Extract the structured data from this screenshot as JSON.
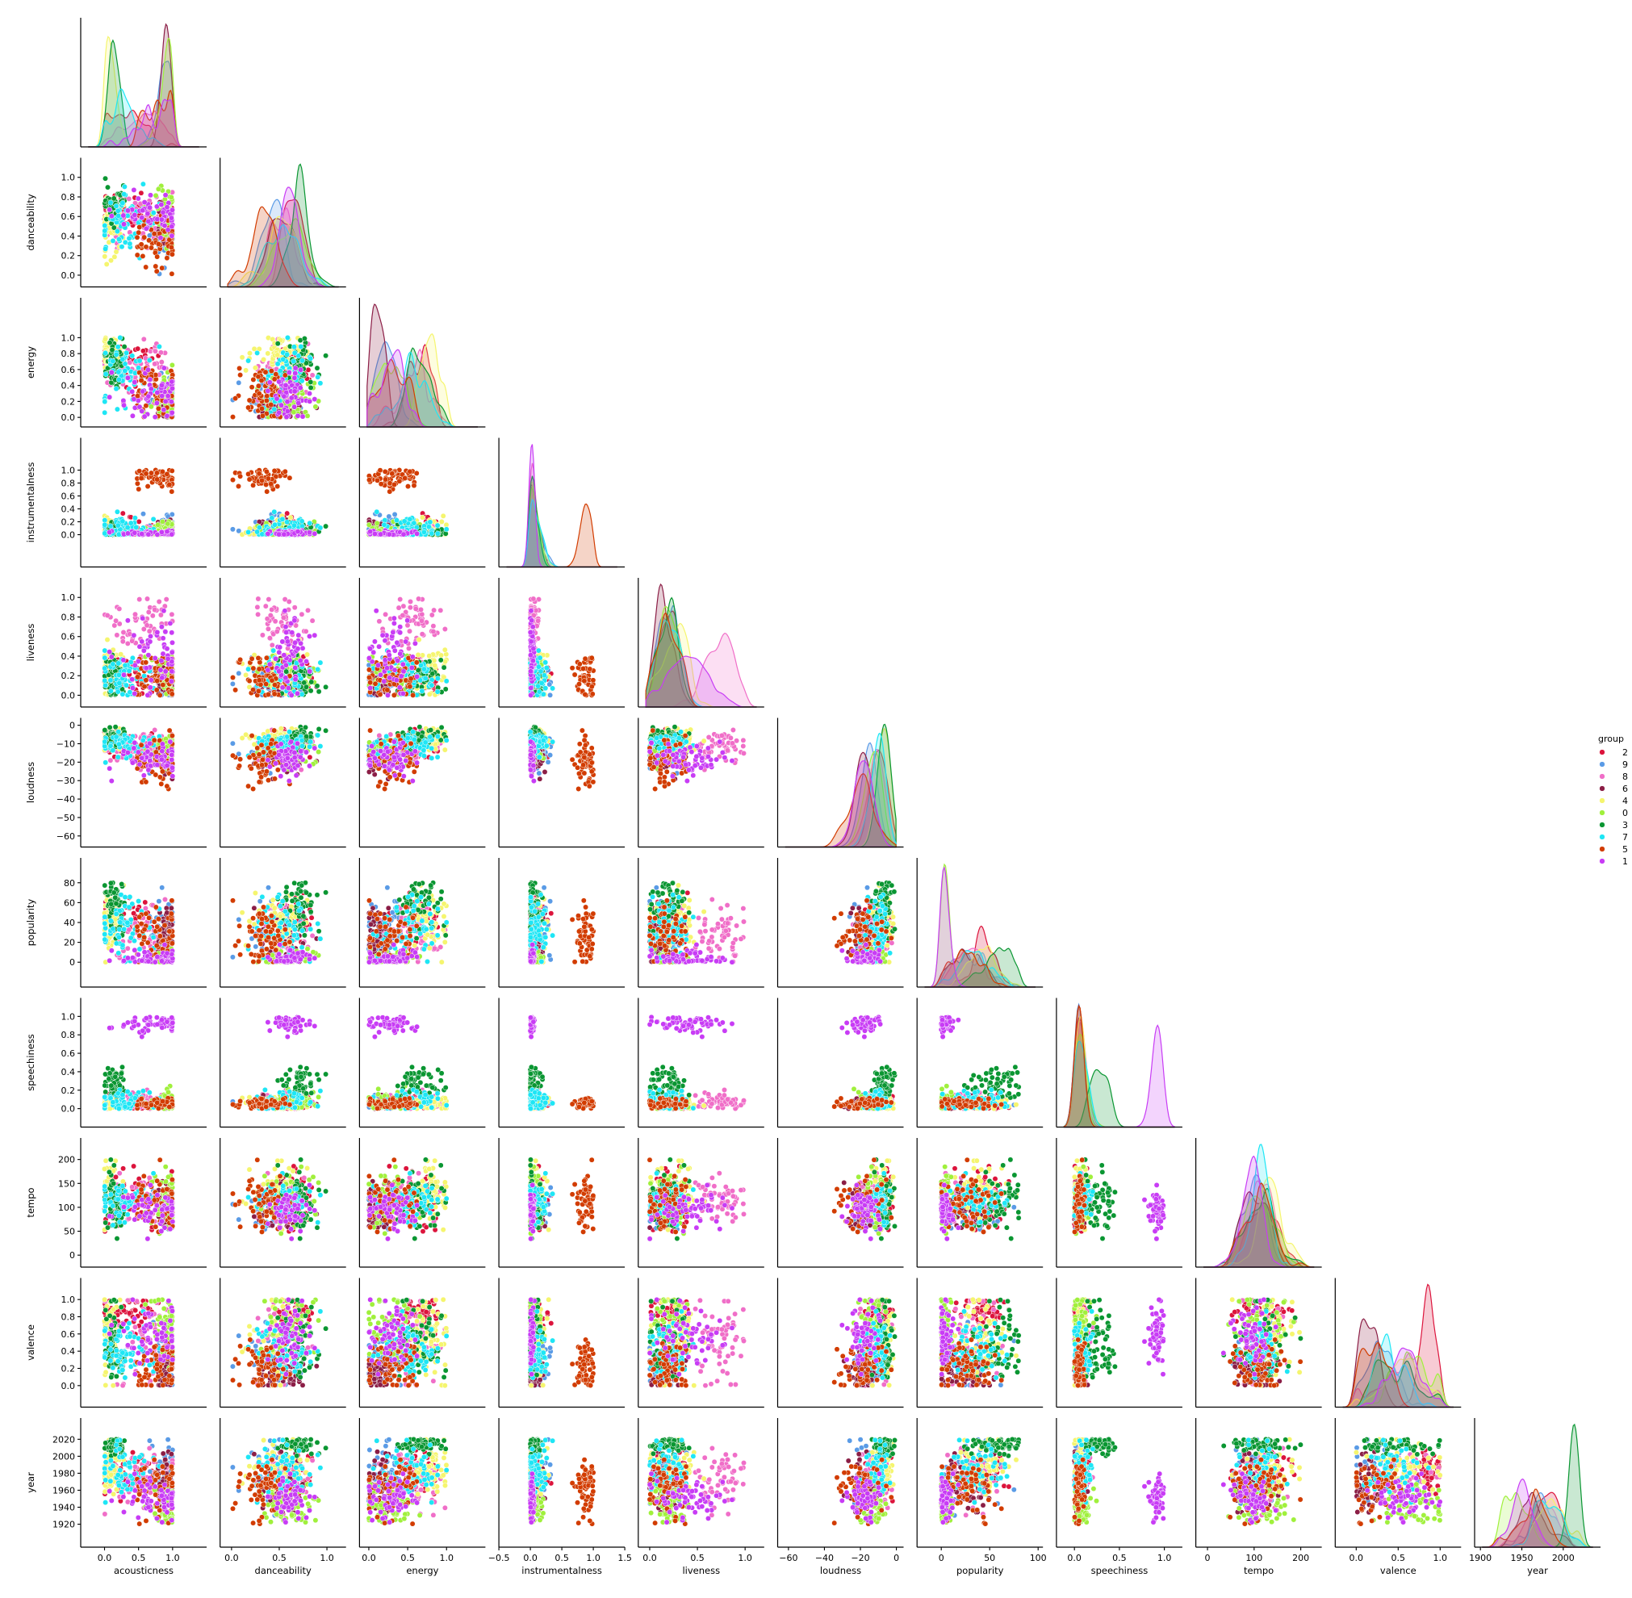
{
  "chart_data": {
    "type": "scatter",
    "kind": "pairplot-lower-triangle",
    "diag_kind": "kde",
    "variables": [
      {
        "name": "acousticness",
        "range": [
          -0.35,
          1.5
        ],
        "ticks": [
          0.0,
          0.5,
          1.0
        ],
        "tick_labels": [
          "0.0",
          "0.5",
          "1.0"
        ]
      },
      {
        "name": "danceability",
        "range": [
          -0.12,
          1.2
        ],
        "ticks": [
          0.0,
          0.2,
          0.4,
          0.6,
          0.8,
          1.0
        ],
        "tick_labels": [
          "0.0",
          "0.2",
          "0.4",
          "0.6",
          "0.8",
          "1.0"
        ],
        "x_ticks": [
          0.0,
          0.5,
          1.0
        ],
        "x_tick_labels": [
          "0.0",
          "0.5",
          "1.0"
        ]
      },
      {
        "name": "energy",
        "range": [
          -0.12,
          1.5
        ],
        "ticks": [
          0.0,
          0.2,
          0.4,
          0.6,
          0.8,
          1.0
        ],
        "tick_labels": [
          "0.0",
          "0.2",
          "0.4",
          "0.6",
          "0.8",
          "1.0"
        ],
        "x_ticks": [
          0.0,
          0.5,
          1.0
        ],
        "x_tick_labels": [
          "0.0",
          "0.5",
          "1.0"
        ]
      },
      {
        "name": "instrumentalness",
        "range": [
          -0.5,
          1.5
        ],
        "ticks": [
          0.0,
          0.2,
          0.4,
          0.6,
          0.8,
          1.0
        ],
        "tick_labels": [
          "0.0",
          "0.2",
          "0.4",
          "0.6",
          "0.8",
          "1.0"
        ],
        "x_ticks": [
          -0.5,
          0.0,
          0.5,
          1.0,
          1.5
        ],
        "x_tick_labels": [
          "−0.5",
          "0.0",
          "0.5",
          "1.0",
          "1.5"
        ]
      },
      {
        "name": "liveness",
        "range": [
          -0.12,
          1.2
        ],
        "ticks": [
          0.0,
          0.2,
          0.4,
          0.6,
          0.8,
          1.0
        ],
        "tick_labels": [
          "0.0",
          "0.2",
          "0.4",
          "0.6",
          "0.8",
          "1.0"
        ],
        "x_ticks": [
          0.0,
          0.5,
          1.0
        ],
        "x_tick_labels": [
          "0.0",
          "0.5",
          "1.0"
        ]
      },
      {
        "name": "loudness",
        "range": [
          -66,
          4
        ],
        "ticks": [
          -60,
          -50,
          -40,
          -30,
          -20,
          -10,
          0
        ],
        "tick_labels": [
          "−60",
          "−50",
          "−40",
          "−30",
          "−20",
          "−10",
          "0"
        ],
        "x_ticks": [
          -60,
          -40,
          -20,
          0
        ],
        "x_tick_labels": [
          "−60",
          "−40",
          "−20",
          "0"
        ]
      },
      {
        "name": "popularity",
        "range": [
          -25,
          105
        ],
        "ticks": [
          0,
          20,
          40,
          60,
          80
        ],
        "tick_labels": [
          "0",
          "20",
          "40",
          "60",
          "80"
        ],
        "x_ticks": [
          0,
          50,
          100
        ],
        "x_tick_labels": [
          "0",
          "50",
          "100"
        ]
      },
      {
        "name": "speechiness",
        "range": [
          -0.2,
          1.2
        ],
        "ticks": [
          0.0,
          0.2,
          0.4,
          0.6,
          0.8,
          1.0
        ],
        "tick_labels": [
          "0.0",
          "0.2",
          "0.4",
          "0.6",
          "0.8",
          "1.0"
        ],
        "x_ticks": [
          0.0,
          0.5,
          1.0
        ],
        "x_tick_labels": [
          "0.0",
          "0.5",
          "1.0"
        ]
      },
      {
        "name": "tempo",
        "range": [
          -25,
          245
        ],
        "ticks": [
          0,
          50,
          100,
          150,
          200
        ],
        "tick_labels": [
          "0",
          "50",
          "100",
          "150",
          "200"
        ],
        "x_ticks": [
          0,
          100,
          200
        ],
        "x_tick_labels": [
          "0",
          "100",
          "200"
        ]
      },
      {
        "name": "valence",
        "range": [
          -0.25,
          1.25
        ],
        "ticks": [
          0.0,
          0.2,
          0.4,
          0.6,
          0.8,
          1.0
        ],
        "tick_labels": [
          "0.0",
          "0.2",
          "0.4",
          "0.6",
          "0.8",
          "1.0"
        ],
        "x_ticks": [
          0.0,
          0.5,
          1.0
        ],
        "x_tick_labels": [
          "0.0",
          "0.5",
          "1.0"
        ]
      },
      {
        "name": "year",
        "range": [
          1893,
          2045
        ],
        "ticks": [
          1920,
          1940,
          1960,
          1980,
          2000,
          2020
        ],
        "tick_labels": [
          "1920",
          "1940",
          "1960",
          "1980",
          "2000",
          "2020"
        ],
        "x_ticks": [
          1900,
          1950,
          2000
        ],
        "x_tick_labels": [
          "1900",
          "1950",
          "2000"
        ]
      }
    ],
    "legend": {
      "title": "group",
      "placement": "right",
      "entries": [
        {
          "label": "2",
          "color": "#dc143c"
        },
        {
          "label": "9",
          "color": "#5a9be6"
        },
        {
          "label": "8",
          "color": "#f06ec8"
        },
        {
          "label": "6",
          "color": "#8b1e46"
        },
        {
          "label": "4",
          "color": "#f5f56e"
        },
        {
          "label": "0",
          "color": "#a0f03c"
        },
        {
          "label": "3",
          "color": "#0a9632"
        },
        {
          "label": "7",
          "color": "#1ee6f5"
        },
        {
          "label": "5",
          "color": "#d23c00"
        },
        {
          "label": "1",
          "color": "#c83cf5"
        }
      ]
    },
    "group_profiles": {
      "2": {
        "acousticness": [
          0.3,
          0.3
        ],
        "danceability": [
          0.67,
          0.1
        ],
        "energy": [
          0.65,
          0.15
        ],
        "instrumentalness": [
          0.04,
          0.1
        ],
        "liveness": [
          0.22,
          0.12
        ],
        "loudness": [
          -9,
          4
        ],
        "popularity": [
          45,
          12
        ],
        "speechiness": [
          0.06,
          0.04
        ],
        "tempo": [
          120,
          25
        ],
        "valence": [
          0.85,
          0.1
        ],
        "year": [
          1982,
          12
        ]
      },
      "9": {
        "acousticness": [
          0.88,
          0.1
        ],
        "danceability": [
          0.42,
          0.12
        ],
        "energy": [
          0.22,
          0.12
        ],
        "instrumentalness": [
          0.06,
          0.12
        ],
        "liveness": [
          0.17,
          0.1
        ],
        "loudness": [
          -15,
          4
        ],
        "popularity": [
          30,
          15
        ],
        "speechiness": [
          0.05,
          0.03
        ],
        "tempo": [
          100,
          25
        ],
        "valence": [
          0.3,
          0.15
        ],
        "year": [
          1975,
          15
        ]
      },
      "8": {
        "acousticness": [
          0.5,
          0.3
        ],
        "danceability": [
          0.52,
          0.15
        ],
        "energy": [
          0.6,
          0.2
        ],
        "instrumentalness": [
          0.02,
          0.05
        ],
        "liveness": [
          0.72,
          0.15
        ],
        "loudness": [
          -11,
          5
        ],
        "popularity": [
          30,
          15
        ],
        "speechiness": [
          0.08,
          0.05
        ],
        "tempo": [
          120,
          25
        ],
        "valence": [
          0.5,
          0.25
        ],
        "year": [
          1975,
          20
        ]
      },
      "6": {
        "acousticness": [
          0.9,
          0.08
        ],
        "danceability": [
          0.52,
          0.12
        ],
        "energy": [
          0.12,
          0.08
        ],
        "instrumentalness": [
          0.03,
          0.1
        ],
        "liveness": [
          0.15,
          0.1
        ],
        "loudness": [
          -18,
          4
        ],
        "popularity": [
          25,
          15
        ],
        "speechiness": [
          0.05,
          0.03
        ],
        "tempo": [
          100,
          25
        ],
        "valence": [
          0.15,
          0.1
        ],
        "year": [
          1962,
          18
        ]
      },
      "4": {
        "acousticness": [
          0.08,
          0.08
        ],
        "danceability": [
          0.5,
          0.15
        ],
        "energy": [
          0.8,
          0.12
        ],
        "instrumentalness": [
          0.04,
          0.1
        ],
        "liveness": [
          0.25,
          0.12
        ],
        "loudness": [
          -7,
          3
        ],
        "popularity": [
          40,
          15
        ],
        "speechiness": [
          0.06,
          0.04
        ],
        "tempo": [
          140,
          30
        ],
        "valence": [
          0.55,
          0.25
        ],
        "year": [
          1990,
          15
        ]
      },
      "0": {
        "acousticness": [
          0.9,
          0.1
        ],
        "danceability": [
          0.58,
          0.15
        ],
        "energy": [
          0.28,
          0.15
        ],
        "instrumentalness": [
          0.04,
          0.1
        ],
        "liveness": [
          0.2,
          0.12
        ],
        "loudness": [
          -13,
          4
        ],
        "popularity": [
          3,
          4
        ],
        "speechiness": [
          0.08,
          0.06
        ],
        "tempo": [
          115,
          30
        ],
        "valence": [
          0.7,
          0.2
        ],
        "year": [
          1945,
          12
        ]
      },
      "3": {
        "acousticness": [
          0.12,
          0.1
        ],
        "danceability": [
          0.75,
          0.1
        ],
        "energy": [
          0.65,
          0.15
        ],
        "instrumentalness": [
          0.03,
          0.08
        ],
        "liveness": [
          0.2,
          0.12
        ],
        "loudness": [
          -7,
          3
        ],
        "popularity": [
          55,
          15
        ],
        "speechiness": [
          0.3,
          0.1
        ],
        "tempo": [
          115,
          25
        ],
        "valence": [
          0.5,
          0.25
        ],
        "year": [
          2012,
          6
        ]
      },
      "7": {
        "acousticness": [
          0.3,
          0.25
        ],
        "danceability": [
          0.55,
          0.15
        ],
        "energy": [
          0.55,
          0.2
        ],
        "instrumentalness": [
          0.05,
          0.1
        ],
        "liveness": [
          0.2,
          0.12
        ],
        "loudness": [
          -10,
          4
        ],
        "popularity": [
          35,
          15
        ],
        "speechiness": [
          0.08,
          0.06
        ],
        "tempo": [
          115,
          25
        ],
        "valence": [
          0.35,
          0.2
        ],
        "year": [
          1985,
          18
        ]
      },
      "5": {
        "acousticness": [
          0.75,
          0.25
        ],
        "danceability": [
          0.35,
          0.12
        ],
        "energy": [
          0.3,
          0.2
        ],
        "instrumentalness": [
          0.88,
          0.08
        ],
        "liveness": [
          0.18,
          0.1
        ],
        "loudness": [
          -20,
          6
        ],
        "popularity": [
          25,
          15
        ],
        "speechiness": [
          0.05,
          0.03
        ],
        "tempo": [
          110,
          30
        ],
        "valence": [
          0.22,
          0.15
        ],
        "year": [
          1965,
          20
        ]
      },
      "1": {
        "acousticness": [
          0.7,
          0.25
        ],
        "danceability": [
          0.6,
          0.12
        ],
        "energy": [
          0.3,
          0.15
        ],
        "instrumentalness": [
          0.01,
          0.03
        ],
        "liveness": [
          0.4,
          0.2
        ],
        "loudness": [
          -18,
          4
        ],
        "popularity": [
          3,
          5
        ],
        "speechiness": [
          0.92,
          0.04
        ],
        "tempo": [
          100,
          20
        ],
        "valence": [
          0.55,
          0.2
        ],
        "year": [
          1950,
          12
        ]
      }
    },
    "points_per_group": 60,
    "grid": false,
    "corner": true
  }
}
